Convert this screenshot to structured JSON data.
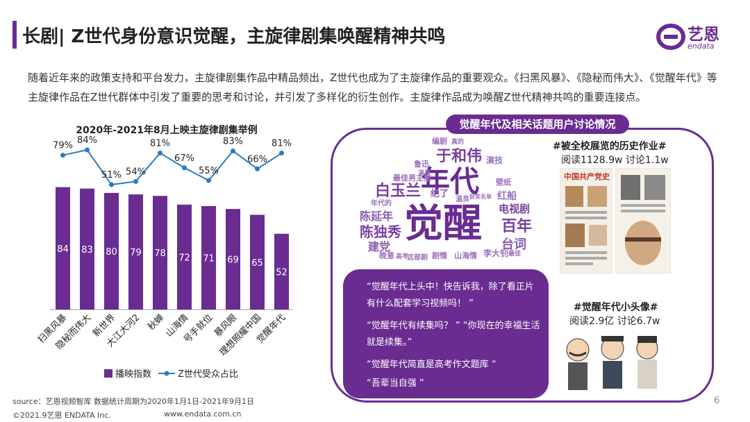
{
  "header": {
    "title": "长剧| Z世代身份意识觉醒，主旋律剧集唤醒精神共鸣",
    "logo_text": "艺恩",
    "logo_sub": "endata"
  },
  "intro": "随着近年来的政策支持和平台发力，主旋律剧集作品中精品频出，Z世代也成为了主旋律作品的重要观众。《扫黑风暴》、《隐秘而伟大》、《觉醒年代》等主旋律作品在Z世代群体中引发了重要的思考和讨论，并引发了多样化的衍生创作。主旋律作品成为唤醒Z世代精神共鸣的重要连接点。",
  "chart_data": {
    "type": "bar",
    "title": "2020年-2021年8月上映主旋律剧集举例",
    "categories": [
      "扫黑风暴",
      "隐秘而伟大",
      "新世界",
      "大江大河2",
      "秋蝉",
      "山海情",
      "号手就位",
      "暴风眼",
      "理想照耀中国",
      "觉醒年代"
    ],
    "series": [
      {
        "name": "播映指数",
        "type": "bar",
        "values": [
          84,
          83,
          80,
          79,
          78,
          72,
          71,
          69,
          65,
          52
        ],
        "color": "#6a2c91"
      },
      {
        "name": "Z世代受众占比",
        "type": "line",
        "values": [
          79,
          84,
          51,
          54,
          81,
          67,
          55,
          83,
          66,
          81
        ],
        "labels": [
          "79%",
          "84%",
          "51%",
          "54%",
          "81%",
          "67%",
          "55%",
          "83%",
          "66%",
          "81%"
        ],
        "color": "#2b7bbd"
      }
    ],
    "legend": {
      "position": "bottom",
      "bar_label": "播映指数",
      "line_label": "Z世代受众占比"
    }
  },
  "panel": {
    "title": "觉醒年代及相关话题用户讨论情况",
    "word_cloud": [
      "觉醒",
      "年代",
      "于和伟",
      "白玉兰",
      "陈延年",
      "陈独秀",
      "百年",
      "台词",
      "建党",
      "电视剧",
      "红船",
      "绝了",
      "李大钊",
      "山海情",
      "剧情",
      "这部剧",
      "晚意",
      "高考",
      "最佳男主角",
      "年代的",
      "壁纸",
      "演技",
      "鲁迅",
      "编剧",
      "真的",
      "温良",
      "获奖名单",
      "最佳",
      "演员"
    ],
    "quotes": [
      "“觉醒年代上头中！快告诉我，除了看正片有什么配套学习视频吗！ ”",
      "“觉醒年代有续集吗？ ” “你现在的幸福生活就是续集。”",
      "“觉醒年代简直是高考作文题库 “",
      "“吾辈当自强 ”"
    ],
    "topics": [
      {
        "title": "#被全校展览的历史作业#",
        "stats": "阅读1128.9w 讨论1.1w"
      },
      {
        "title": "#觉醒年代小头像#",
        "stats": "阅读2.9亿 讨论6.7w"
      }
    ],
    "image_caption": "中国共产党史"
  },
  "footer": {
    "source": "source：艺恩视频智库     数据统计周期为2020年1月1日-2021年9月1日",
    "copyright": "©2021.9艺恩 ENDATA Inc.",
    "url": "www.endata.com.cn",
    "page": "6"
  },
  "colors": {
    "accent": "#6a2c91",
    "line": "#2b7bbd"
  }
}
